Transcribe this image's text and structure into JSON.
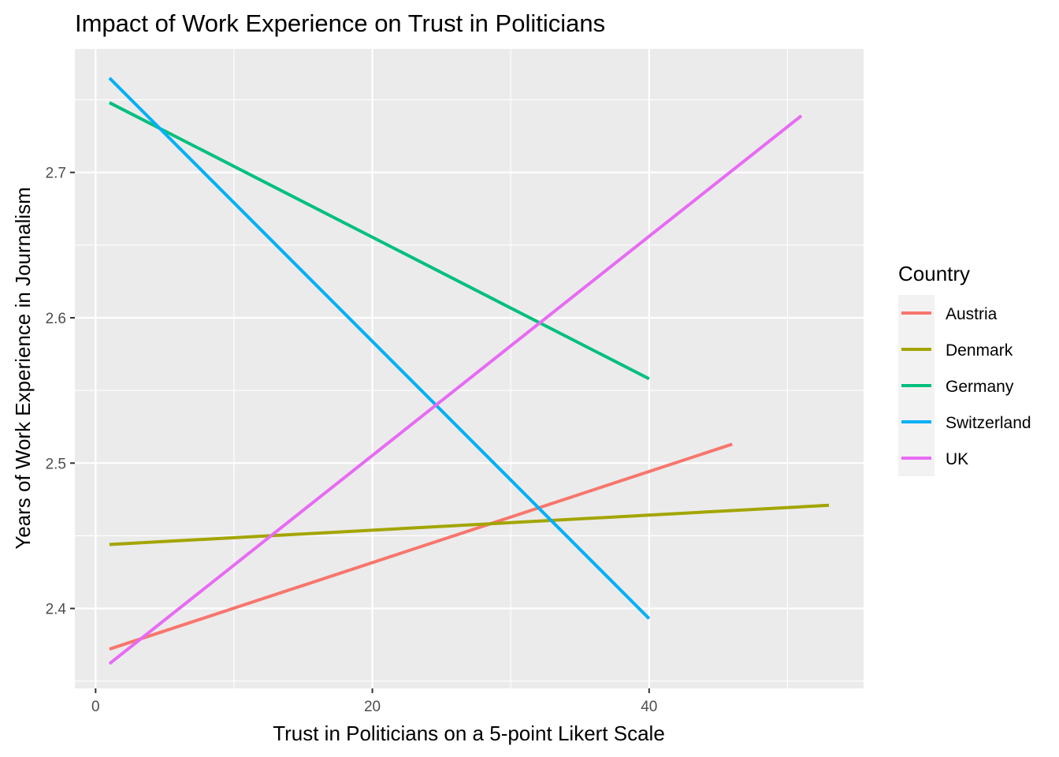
{
  "chart_data": {
    "type": "line",
    "title": "Impact of Work Experience on Trust in Politicians",
    "xlabel": "Trust in Politicians on a 5-point Likert Scale",
    "ylabel": "Years of Work Experience in Journalism",
    "xlim": [
      -1.5,
      55.5
    ],
    "ylim": [
      2.345,
      2.785
    ],
    "x_ticks": [
      0,
      20,
      40
    ],
    "x_tick_labels": [
      "0",
      "20",
      "40"
    ],
    "y_ticks": [
      2.4,
      2.5,
      2.6,
      2.7
    ],
    "y_tick_labels": [
      "2.4",
      "2.5",
      "2.6",
      "2.7"
    ],
    "grid": true,
    "legend": {
      "title": "Country",
      "placement": "right"
    },
    "series": [
      {
        "name": "Austria",
        "color": "#F8766D",
        "x": [
          1,
          46
        ],
        "y": [
          2.372,
          2.513
        ]
      },
      {
        "name": "Denmark",
        "color": "#A3A500",
        "x": [
          1,
          53
        ],
        "y": [
          2.444,
          2.471
        ]
      },
      {
        "name": "Germany",
        "color": "#00BF7D",
        "x": [
          1,
          40
        ],
        "y": [
          2.748,
          2.558
        ]
      },
      {
        "name": "Switzerland",
        "color": "#00B0F6",
        "x": [
          1,
          40
        ],
        "y": [
          2.765,
          2.393
        ]
      },
      {
        "name": "UK",
        "color": "#E76BF3",
        "x": [
          1,
          51
        ],
        "y": [
          2.362,
          2.739
        ]
      }
    ]
  }
}
